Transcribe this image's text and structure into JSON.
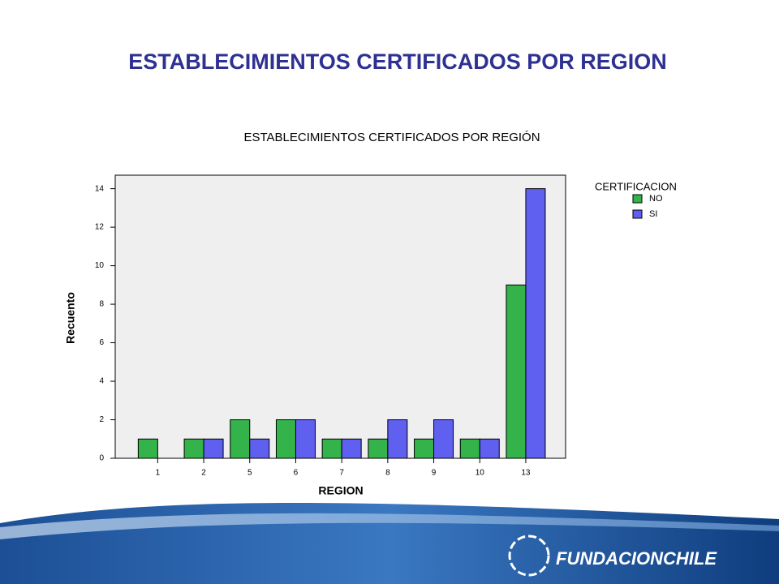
{
  "slide_title": "ESTABLECIMIENTOS CERTIFICADOS POR REGION",
  "logo_text": "FUNDACIONCHILE",
  "chart_data": {
    "type": "bar",
    "title": "ESTABLECIMIENTOS CERTIFICADOS POR REGIÓN",
    "x_label": "REGION",
    "y_label": "Recuento",
    "legend_title": "CERTIFICACION",
    "categories": [
      "1",
      "2",
      "5",
      "6",
      "7",
      "8",
      "9",
      "10",
      "13"
    ],
    "series": [
      {
        "name": "NO",
        "color": "#33b34a",
        "values": [
          1,
          1,
          2,
          2,
          1,
          1,
          1,
          1,
          9
        ]
      },
      {
        "name": "SI",
        "color": "#6060f0",
        "values": [
          0,
          1,
          1,
          2,
          1,
          2,
          2,
          1,
          14
        ]
      }
    ],
    "ylim": [
      0,
      14.7
    ],
    "yticks": [
      0,
      2,
      4,
      6,
      8,
      10,
      12,
      14
    ]
  }
}
